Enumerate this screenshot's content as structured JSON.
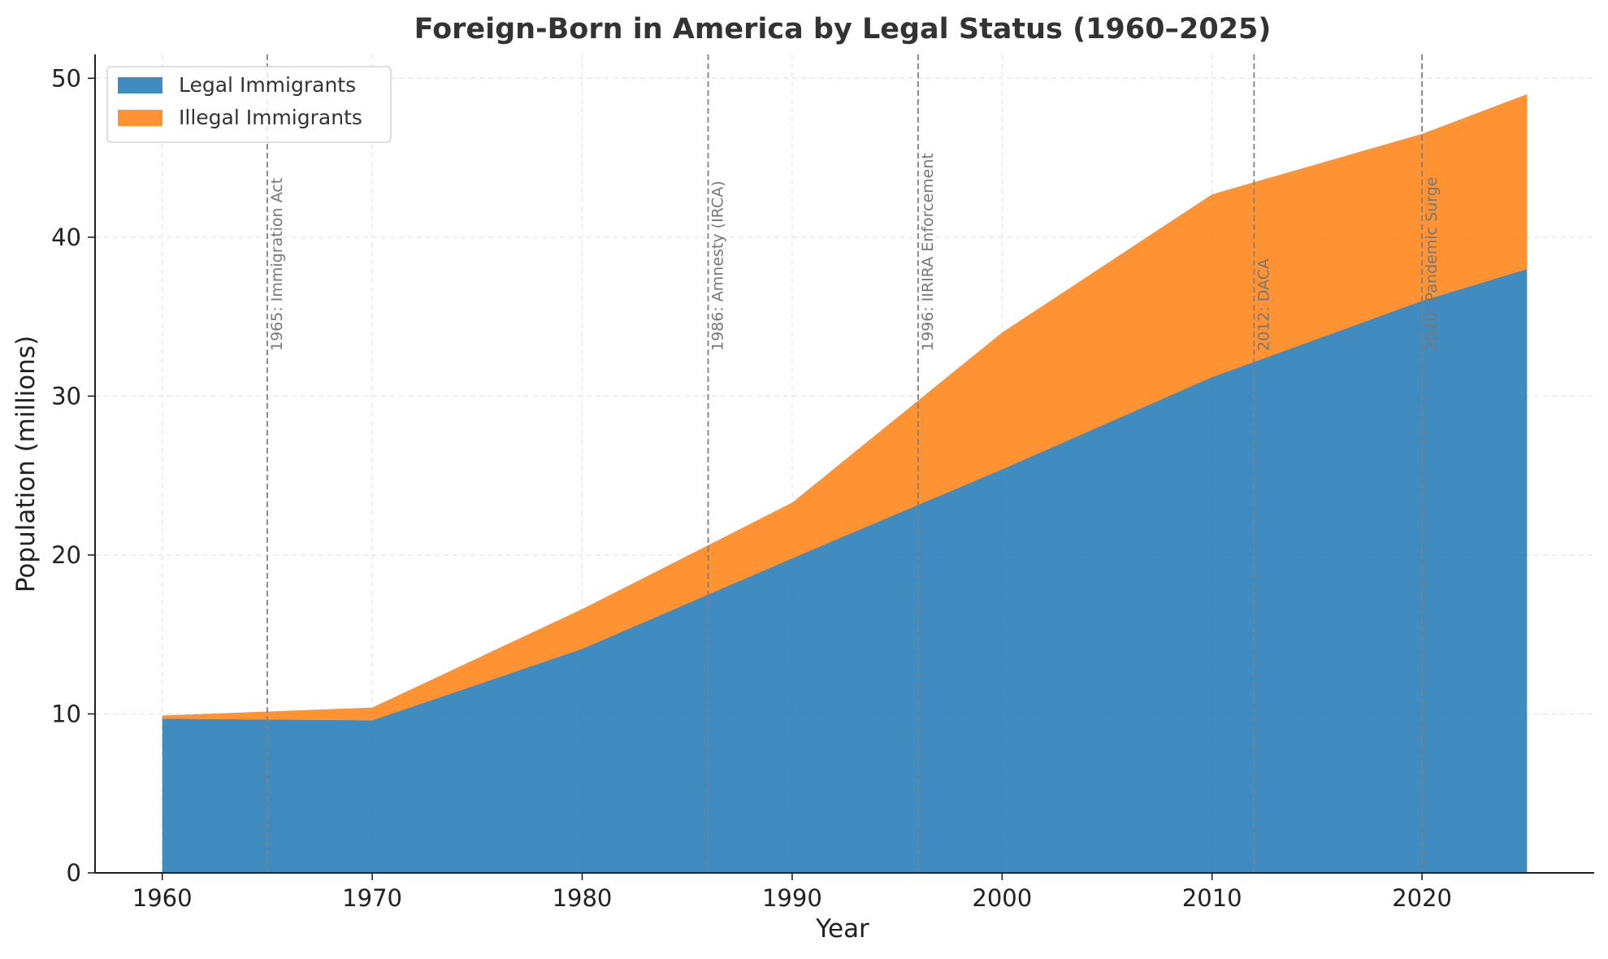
{
  "chart_data": {
    "type": "area",
    "stacked": true,
    "title": "Foreign-Born in America by Legal Status (1960–2025)",
    "xlabel": "Year",
    "ylabel": "Population (millions)",
    "xlim": [
      1956.8,
      2028.2
    ],
    "ylim": [
      0,
      51.5
    ],
    "x": [
      1960,
      1970,
      1980,
      1990,
      2000,
      2010,
      2020,
      2025
    ],
    "x_ticks": [
      1960,
      1970,
      1980,
      1990,
      2000,
      2010,
      2020
    ],
    "y_ticks": [
      0,
      10,
      20,
      30,
      40,
      50
    ],
    "grid": true,
    "legend_position": "upper-left",
    "series": [
      {
        "name": "Legal Immigrants",
        "color": "#1f77b4",
        "values": [
          9.7,
          9.6,
          14.1,
          19.8,
          25.4,
          31.2,
          36.0,
          38.0
        ]
      },
      {
        "name": "Illegal Immigrants",
        "color": "#ff7f0e",
        "values": [
          0.2,
          0.8,
          2.5,
          3.5,
          8.6,
          11.5,
          10.5,
          11.0
        ]
      }
    ],
    "annotations": [
      {
        "year": 1965,
        "label": "1965: Immigration Act"
      },
      {
        "year": 1986,
        "label": "1986: Amnesty (IRCA)"
      },
      {
        "year": 1996,
        "label": "1996: IIRIRA Enforcement"
      },
      {
        "year": 2012,
        "label": "2012: DACA"
      },
      {
        "year": 2020,
        "label": "2020: Pandemic Surge"
      }
    ]
  }
}
